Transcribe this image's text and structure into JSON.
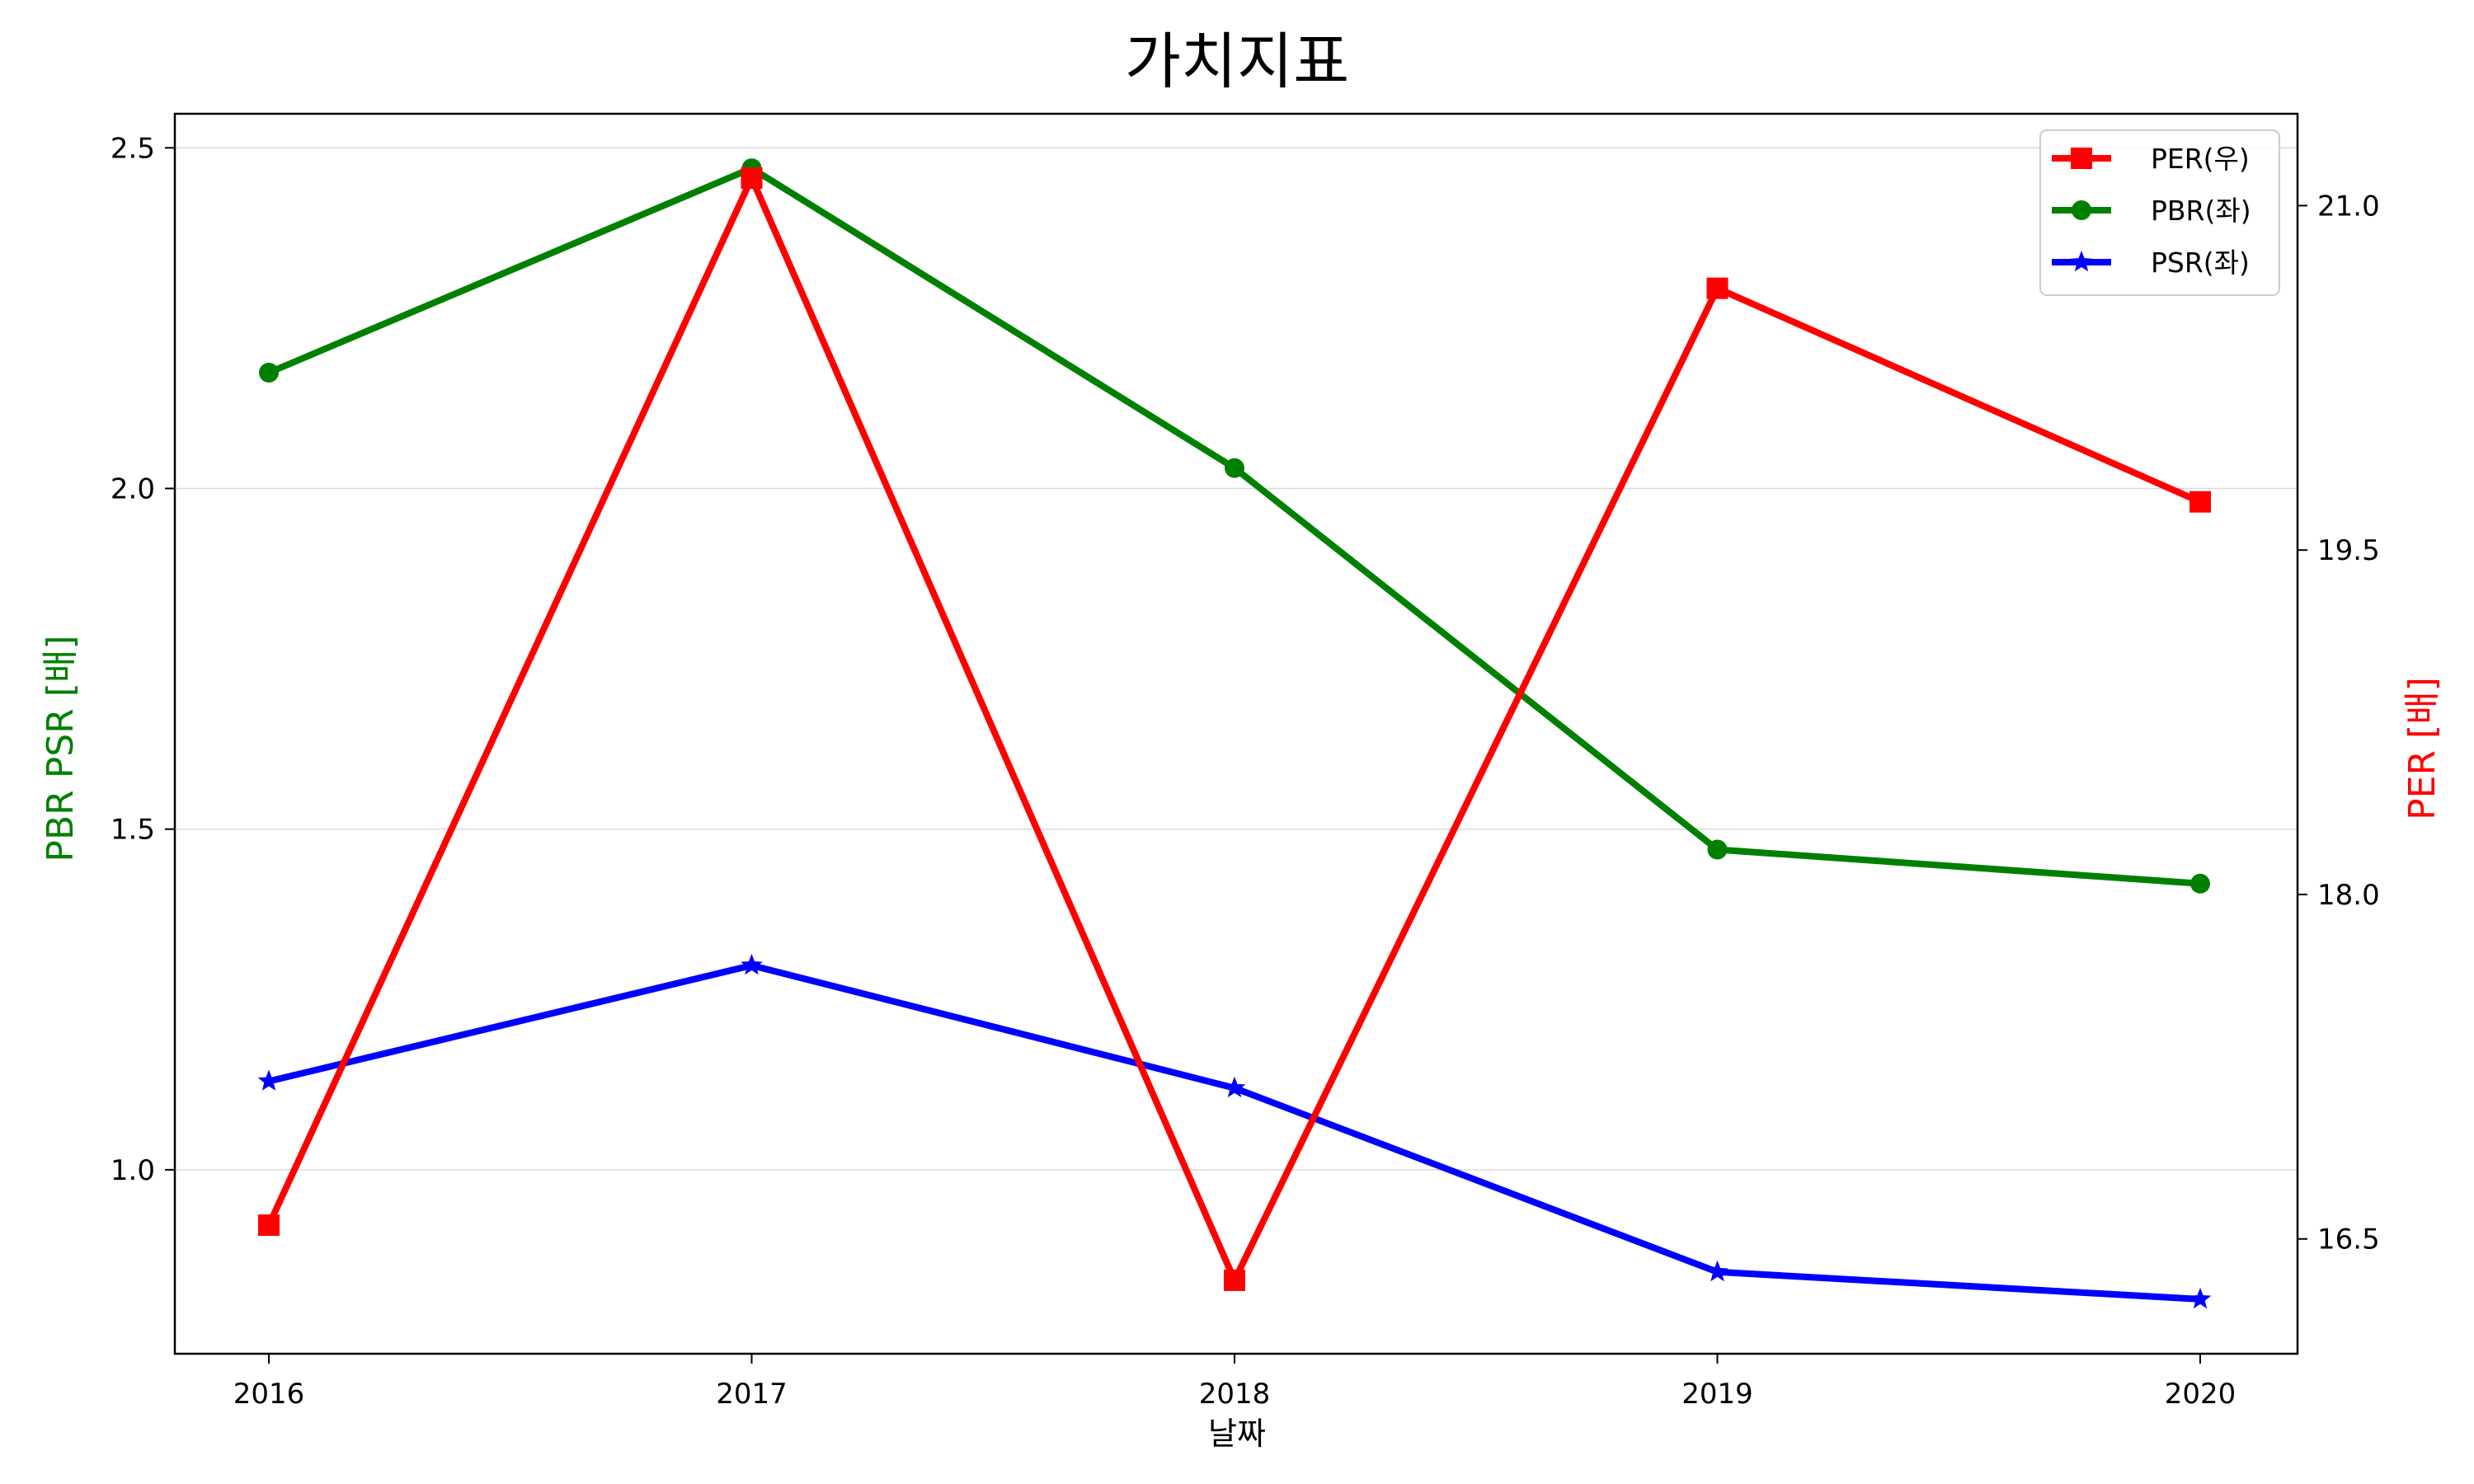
{
  "chart_data": {
    "type": "line",
    "title": "가치지표",
    "xlabel": "날짜",
    "ylabel_left": "PBR PSR [배]",
    "ylabel_right": "PER [배]",
    "x": [
      "2016",
      "2017",
      "2018",
      "2019",
      "2020"
    ],
    "ylim_left": [
      0.73,
      2.55
    ],
    "ylim_right": [
      16.0,
      21.4
    ],
    "yticks_left": [
      {
        "value": 1.0,
        "label": "1.0"
      },
      {
        "value": 1.5,
        "label": "1.5"
      },
      {
        "value": 2.0,
        "label": "2.0"
      },
      {
        "value": 2.5,
        "label": "2.5"
      }
    ],
    "yticks_right": [
      {
        "value": 16.5,
        "label": "16.5"
      },
      {
        "value": 18.0,
        "label": "18.0"
      },
      {
        "value": 19.5,
        "label": "19.5"
      },
      {
        "value": 21.0,
        "label": "21.0"
      }
    ],
    "grid": "horizontal, left axis",
    "legend_position": "top-right",
    "series": [
      {
        "name": "PER(우)",
        "axis": "right",
        "color": "#ff0000",
        "marker": "square",
        "values": [
          16.56,
          21.12,
          16.32,
          20.64,
          19.71
        ]
      },
      {
        "name": "PBR(좌)",
        "axis": "left",
        "color": "#008000",
        "marker": "circle",
        "values": [
          2.17,
          2.47,
          2.03,
          1.47,
          1.42
        ]
      },
      {
        "name": "PSR(좌)",
        "axis": "left",
        "color": "#0000ff",
        "marker": "star",
        "values": [
          1.13,
          1.3,
          1.12,
          0.85,
          0.81
        ]
      }
    ]
  }
}
